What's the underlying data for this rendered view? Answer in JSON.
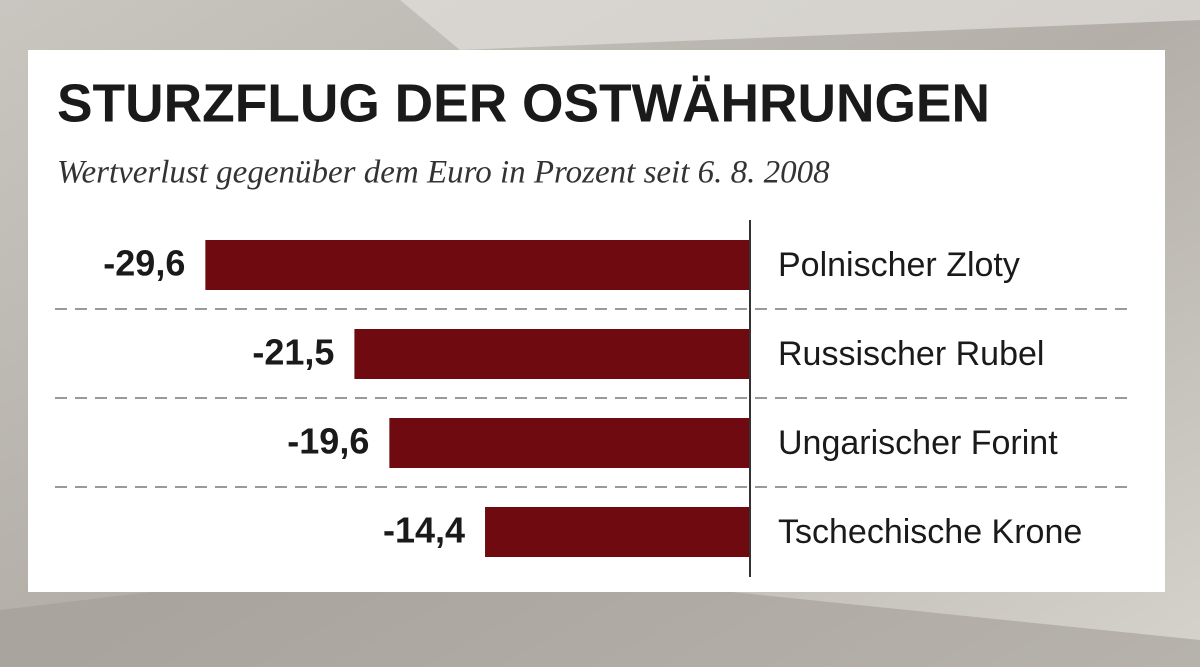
{
  "chart_data": {
    "type": "hbar",
    "title": "STURZFLUG DER OSTWÄHRUNGEN",
    "subtitle": "Wertverlust gegenüber dem Euro in Prozent seit 6. 8. 2008",
    "categories": [
      "Polnischer Zloty",
      "Russischer Rubel",
      "Ungarischer Forint",
      "Tschechische Krone"
    ],
    "values": [
      -29.6,
      -21.5,
      -19.6,
      -14.4
    ],
    "value_labels": [
      "-29,6",
      "-21,5",
      "-19,6",
      "-14,4"
    ],
    "color": "#6e0a10",
    "xlim": [
      -30,
      0
    ]
  }
}
